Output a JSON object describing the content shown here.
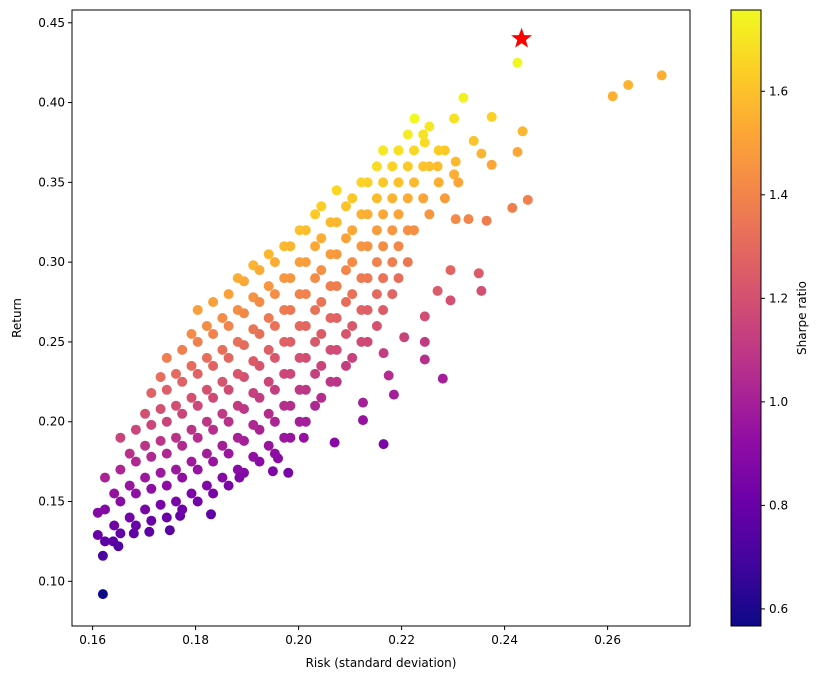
{
  "chart_data": {
    "type": "scatter",
    "title": "",
    "xlabel": "Risk (standard deviation)",
    "ylabel": "Return",
    "xlim": [
      0.156,
      0.276
    ],
    "ylim": [
      0.072,
      0.458
    ],
    "xticks": [
      "0.16",
      "0.18",
      "0.20",
      "0.22",
      "0.24",
      "0.26"
    ],
    "yticks": [
      "0.10",
      "0.15",
      "0.20",
      "0.25",
      "0.30",
      "0.35",
      "0.40",
      "0.45"
    ],
    "grid": false,
    "colorbar": {
      "label": "Sharpe ratio",
      "colormap": "plasma",
      "range": [
        0.567,
        1.757
      ],
      "ticks": [
        "0.6",
        "0.8",
        "1.0",
        "1.2",
        "1.4",
        "1.6"
      ]
    },
    "color_value": "Sharpe ratio = return / risk",
    "highlight": {
      "marker": "star",
      "color": "#ff0000",
      "x": 0.2433,
      "y": 0.44
    },
    "columns": [
      {
        "x": 0.163,
        "y": [
          0.125,
          0.135,
          0.145,
          0.155,
          0.165
        ]
      },
      {
        "x": 0.166,
        "y": [
          0.13,
          0.14,
          0.15,
          0.16,
          0.17,
          0.18,
          0.19
        ]
      },
      {
        "x": 0.169,
        "y": [
          0.135,
          0.145,
          0.155,
          0.165,
          0.175,
          0.185,
          0.195,
          0.205
        ]
      },
      {
        "x": 0.172,
        "y": [
          0.138,
          0.148,
          0.158,
          0.168,
          0.178,
          0.188,
          0.198,
          0.208,
          0.218,
          0.228
        ]
      },
      {
        "x": 0.175,
        "y": [
          0.14,
          0.15,
          0.16,
          0.17,
          0.18,
          0.19,
          0.2,
          0.21,
          0.22,
          0.23,
          0.24
        ]
      },
      {
        "x": 0.178,
        "y": [
          0.145,
          0.155,
          0.165,
          0.175,
          0.185,
          0.195,
          0.205,
          0.215,
          0.225,
          0.235,
          0.245,
          0.255
        ]
      },
      {
        "x": 0.181,
        "y": [
          0.15,
          0.16,
          0.17,
          0.18,
          0.19,
          0.2,
          0.21,
          0.22,
          0.23,
          0.24,
          0.25,
          0.26,
          0.27
        ]
      },
      {
        "x": 0.184,
        "y": [
          0.155,
          0.165,
          0.175,
          0.185,
          0.195,
          0.205,
          0.215,
          0.225,
          0.235,
          0.245,
          0.255,
          0.265,
          0.275
        ]
      },
      {
        "x": 0.187,
        "y": [
          0.16,
          0.17,
          0.18,
          0.19,
          0.2,
          0.21,
          0.22,
          0.23,
          0.24,
          0.25,
          0.26,
          0.27,
          0.28,
          0.29
        ]
      },
      {
        "x": 0.19,
        "y": [
          0.168,
          0.178,
          0.188,
          0.198,
          0.208,
          0.218,
          0.228,
          0.238,
          0.248,
          0.258,
          0.268,
          0.278,
          0.288,
          0.298
        ]
      },
      {
        "x": 0.193,
        "y": [
          0.175,
          0.185,
          0.195,
          0.205,
          0.215,
          0.225,
          0.235,
          0.245,
          0.255,
          0.265,
          0.275,
          0.285,
          0.295,
          0.305
        ]
      },
      {
        "x": 0.196,
        "y": [
          0.18,
          0.19,
          0.2,
          0.21,
          0.22,
          0.23,
          0.24,
          0.25,
          0.26,
          0.27,
          0.28,
          0.29,
          0.3,
          0.31
        ]
      },
      {
        "x": 0.199,
        "y": [
          0.19,
          0.2,
          0.21,
          0.22,
          0.23,
          0.24,
          0.25,
          0.26,
          0.27,
          0.28,
          0.29,
          0.3,
          0.31,
          0.32
        ]
      },
      {
        "x": 0.202,
        "y": [
          0.2,
          0.21,
          0.22,
          0.23,
          0.24,
          0.25,
          0.26,
          0.27,
          0.28,
          0.29,
          0.3,
          0.31,
          0.32,
          0.33
        ]
      },
      {
        "x": 0.205,
        "y": [
          0.215,
          0.225,
          0.235,
          0.245,
          0.255,
          0.265,
          0.275,
          0.285,
          0.295,
          0.305,
          0.315,
          0.325,
          0.335
        ]
      },
      {
        "x": 0.208,
        "y": [
          0.225,
          0.235,
          0.245,
          0.255,
          0.265,
          0.275,
          0.285,
          0.295,
          0.305,
          0.315,
          0.325,
          0.335,
          0.345
        ]
      },
      {
        "x": 0.211,
        "y": [
          0.24,
          0.25,
          0.26,
          0.27,
          0.28,
          0.29,
          0.3,
          0.31,
          0.32,
          0.33,
          0.34,
          0.35
        ]
      },
      {
        "x": 0.214,
        "y": [
          0.25,
          0.26,
          0.27,
          0.28,
          0.29,
          0.3,
          0.31,
          0.32,
          0.33,
          0.34,
          0.35,
          0.36
        ]
      },
      {
        "x": 0.217,
        "y": [
          0.27,
          0.28,
          0.29,
          0.3,
          0.31,
          0.32,
          0.33,
          0.34,
          0.35,
          0.36,
          0.37
        ]
      },
      {
        "x": 0.22,
        "y": [
          0.29,
          0.3,
          0.31,
          0.32,
          0.33,
          0.34,
          0.35,
          0.36,
          0.37,
          0.38
        ]
      },
      {
        "x": 0.223,
        "y": [
          0.32,
          0.34,
          0.35,
          0.36,
          0.37,
          0.38
        ]
      },
      {
        "x": 0.226,
        "y": [
          0.33,
          0.35,
          0.36,
          0.37,
          0.385
        ]
      },
      {
        "x": 0.229,
        "y": [
          0.34,
          0.355,
          0.37,
          0.39
        ]
      }
    ],
    "points": [
      [
        0.162,
        0.092
      ],
      [
        0.162,
        0.116
      ],
      [
        0.161,
        0.129
      ],
      [
        0.161,
        0.143
      ],
      [
        0.2425,
        0.425
      ],
      [
        0.2705,
        0.417
      ],
      [
        0.264,
        0.411
      ],
      [
        0.261,
        0.404
      ],
      [
        0.232,
        0.403
      ],
      [
        0.2435,
        0.382
      ],
      [
        0.2375,
        0.391
      ],
      [
        0.2425,
        0.369
      ],
      [
        0.2445,
        0.339
      ],
      [
        0.2415,
        0.334
      ],
      [
        0.2365,
        0.326
      ],
      [
        0.2375,
        0.361
      ],
      [
        0.2355,
        0.368
      ],
      [
        0.234,
        0.376
      ],
      [
        0.228,
        0.227
      ],
      [
        0.2245,
        0.239
      ],
      [
        0.2245,
        0.25
      ],
      [
        0.2245,
        0.266
      ],
      [
        0.2165,
        0.186
      ],
      [
        0.2125,
        0.201
      ],
      [
        0.2125,
        0.212
      ],
      [
        0.207,
        0.187
      ],
      [
        0.201,
        0.19
      ],
      [
        0.2355,
        0.282
      ],
      [
        0.235,
        0.293
      ],
      [
        0.2295,
        0.295
      ],
      [
        0.2295,
        0.276
      ],
      [
        0.227,
        0.282
      ],
      [
        0.2175,
        0.229
      ],
      [
        0.2185,
        0.217
      ],
      [
        0.2205,
        0.253
      ],
      [
        0.2165,
        0.243
      ],
      [
        0.198,
        0.168
      ],
      [
        0.196,
        0.177
      ],
      [
        0.195,
        0.169
      ],
      [
        0.1885,
        0.165
      ],
      [
        0.183,
        0.142
      ],
      [
        0.177,
        0.141
      ],
      [
        0.171,
        0.131
      ],
      [
        0.168,
        0.13
      ],
      [
        0.175,
        0.132
      ],
      [
        0.165,
        0.122
      ],
      [
        0.164,
        0.125
      ],
      [
        0.2305,
        0.327
      ],
      [
        0.233,
        0.327
      ],
      [
        0.231,
        0.35
      ],
      [
        0.2305,
        0.363
      ],
      [
        0.227,
        0.36
      ],
      [
        0.2225,
        0.39
      ],
      [
        0.2245,
        0.375
      ]
    ]
  }
}
